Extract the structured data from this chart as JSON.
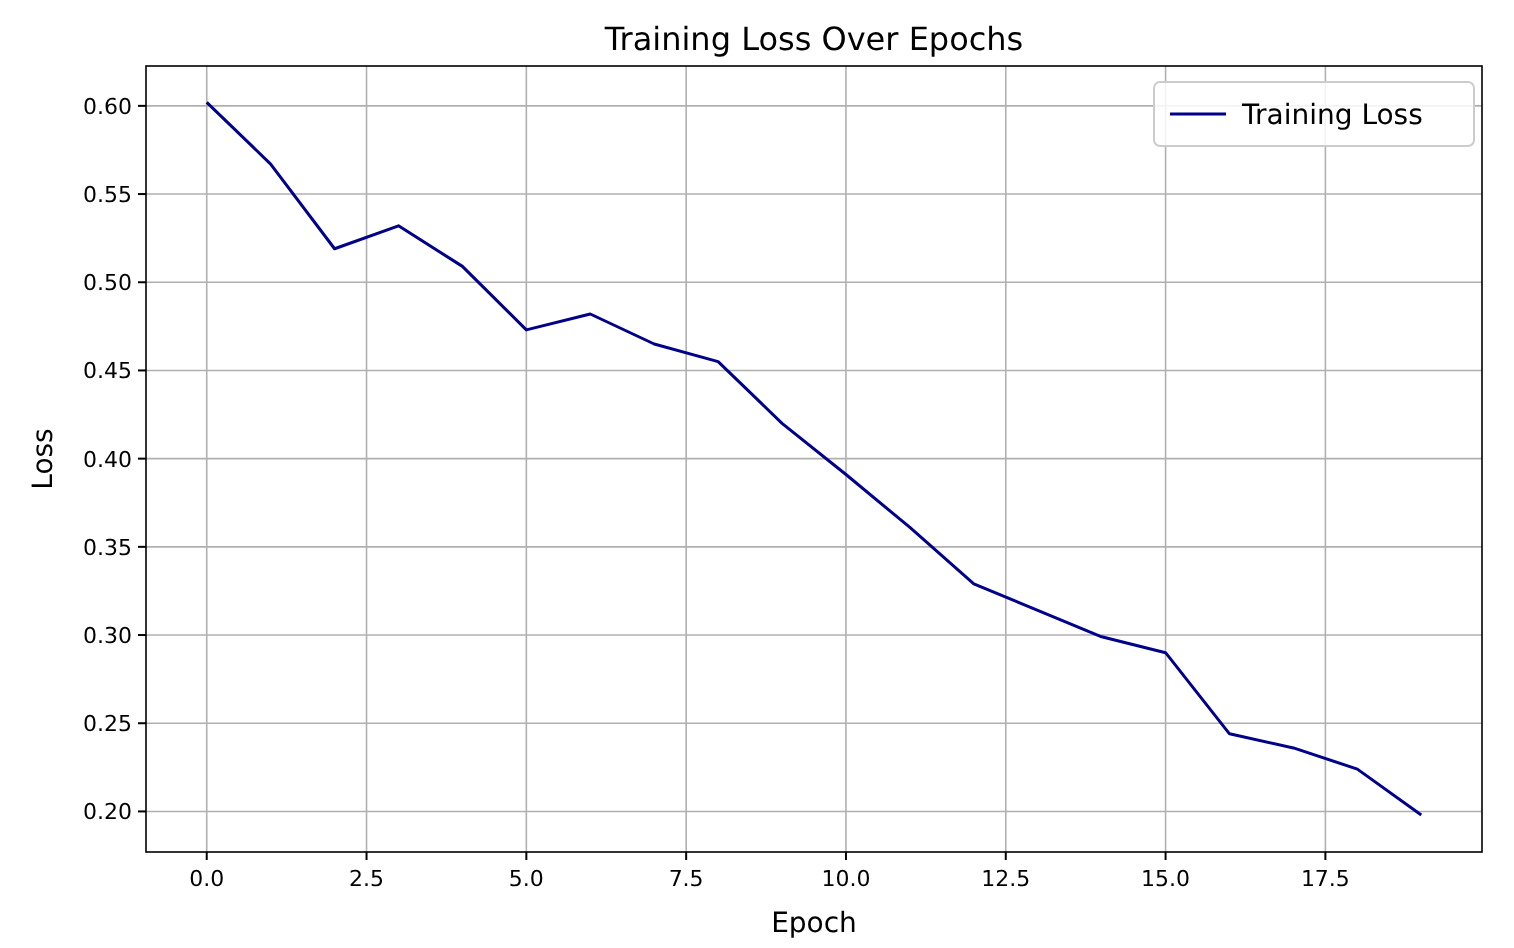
{
  "chart_data": {
    "type": "line",
    "title": "Training Loss Over Epochs",
    "xlabel": "Epoch",
    "ylabel": "Loss",
    "x": [
      0,
      1,
      2,
      3,
      4,
      5,
      6,
      7,
      8,
      9,
      10,
      11,
      12,
      13,
      14,
      15,
      16,
      17,
      18,
      19
    ],
    "series": [
      {
        "name": "Training Loss",
        "color": "#00008b",
        "values": [
          0.602,
          0.567,
          0.519,
          0.532,
          0.509,
          0.473,
          0.482,
          0.465,
          0.455,
          0.42,
          0.391,
          0.361,
          0.329,
          0.314,
          0.299,
          0.29,
          0.244,
          0.236,
          0.224,
          0.198
        ]
      }
    ],
    "xlim": [
      -0.95,
      19.95
    ],
    "xticks": [
      {
        "value": 0,
        "label": "0.0"
      },
      {
        "value": 2.5,
        "label": "2.5"
      },
      {
        "value": 5,
        "label": "5.0"
      },
      {
        "value": 7.5,
        "label": "7.5"
      },
      {
        "value": 10,
        "label": "10.0"
      },
      {
        "value": 12.5,
        "label": "12.5"
      },
      {
        "value": 15,
        "label": "15.0"
      },
      {
        "value": 17.5,
        "label": "17.5"
      }
    ],
    "ylim": [
      0.177,
      0.6226
    ],
    "yticks": [
      {
        "value": 0.2,
        "label": "0.20"
      },
      {
        "value": 0.25,
        "label": "0.25"
      },
      {
        "value": 0.3,
        "label": "0.30"
      },
      {
        "value": 0.35,
        "label": "0.35"
      },
      {
        "value": 0.4,
        "label": "0.40"
      },
      {
        "value": 0.45,
        "label": "0.45"
      },
      {
        "value": 0.5,
        "label": "0.50"
      },
      {
        "value": 0.55,
        "label": "0.55"
      },
      {
        "value": 0.6,
        "label": "0.60"
      }
    ],
    "grid": true,
    "legend": "top right",
    "marker": "none",
    "line_style": "solid"
  }
}
